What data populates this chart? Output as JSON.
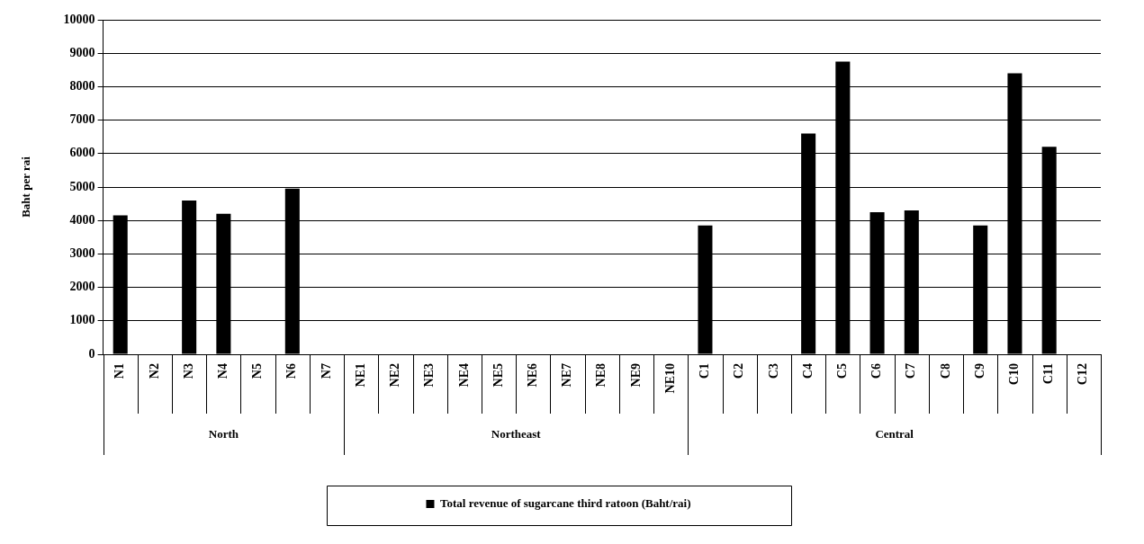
{
  "chart_data": {
    "type": "bar",
    "ylabel": "Baht per rai",
    "categories": [
      "N1",
      "N2",
      "N3",
      "N4",
      "N5",
      "N6",
      "N7",
      "NE1",
      "NE2",
      "NE3",
      "NE4",
      "NE5",
      "NE6",
      "NE7",
      "NE8",
      "NE9",
      "NE10",
      "C1",
      "C2",
      "C3",
      "C4",
      "C5",
      "C6",
      "C7",
      "C8",
      "C9",
      "C10",
      "C11",
      "C12"
    ],
    "series": [
      {
        "name": "Total revenue of sugarcane third ratoon (Baht/rai)",
        "color": "#000000",
        "values": [
          4150,
          null,
          4600,
          4200,
          null,
          4950,
          null,
          null,
          null,
          null,
          null,
          null,
          null,
          null,
          null,
          null,
          null,
          3850,
          null,
          null,
          6600,
          8750,
          4250,
          4300,
          null,
          3850,
          8400,
          6200,
          null
        ]
      }
    ],
    "annotations": [
      "North",
      "Northeast",
      "Central"
    ],
    "ylim": [
      0,
      10000
    ],
    "yticks": [
      0,
      1000,
      2000,
      3000,
      4000,
      5000,
      6000,
      7000,
      8000,
      9000,
      10000
    ],
    "grid": "y",
    "legend": "bottom"
  }
}
